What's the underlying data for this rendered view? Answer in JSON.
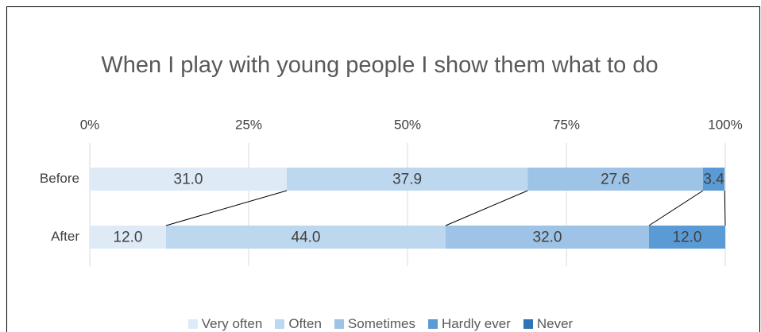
{
  "chart_data": {
    "type": "stacked_barh",
    "title": "When I play with young people I show them what to do",
    "categories": [
      "Before",
      "After"
    ],
    "series": [
      {
        "name": "Very often",
        "color": "#deebf7",
        "values": [
          31.0,
          12.0
        ],
        "value_labels": [
          "31.0",
          "12.0"
        ]
      },
      {
        "name": "Often",
        "color": "#bdd7ee",
        "values": [
          37.9,
          44.0
        ],
        "value_labels": [
          "37.9",
          "44.0"
        ]
      },
      {
        "name": "Sometimes",
        "color": "#9dc3e6",
        "values": [
          27.6,
          32.0
        ],
        "value_labels": [
          "27.6",
          "32.0"
        ]
      },
      {
        "name": "Hardly ever",
        "color": "#5b9bd5",
        "values": [
          3.4,
          12.0
        ],
        "value_labels": [
          "3.4",
          "12.0"
        ]
      },
      {
        "name": "Never",
        "color": "#2e75b6",
        "values": [
          0,
          0
        ]
      }
    ],
    "xlim": [
      0,
      100
    ],
    "xticks": [
      {
        "value": 0,
        "label": "0%"
      },
      {
        "value": 25,
        "label": "25%"
      },
      {
        "value": 50,
        "label": "50%"
      },
      {
        "value": 75,
        "label": "75%"
      },
      {
        "value": 100,
        "label": "100%"
      }
    ],
    "grid": true,
    "legend": "bottom"
  }
}
